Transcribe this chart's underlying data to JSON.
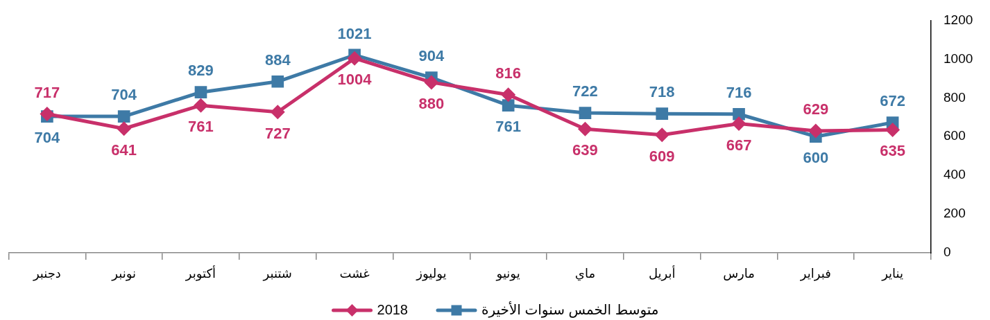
{
  "chart_data": {
    "type": "line",
    "categories": [
      "دجنبر",
      "نونبر",
      "أكتوبر",
      "شتنبر",
      "غشت",
      "يوليوز",
      "يونيو",
      "ماي",
      "أبريل",
      "مارس",
      "فبراير",
      "يناير"
    ],
    "series": [
      {
        "name": "2018",
        "color": "#c8306a",
        "marker": "diamond",
        "values": [
          717,
          641,
          761,
          727,
          1004,
          880,
          816,
          639,
          609,
          667,
          629,
          635
        ]
      },
      {
        "name": "متوسط الخمس سنوات الأخيرة",
        "color": "#3e7aa6",
        "marker": "square",
        "values": [
          704,
          704,
          829,
          884,
          1021,
          904,
          761,
          722,
          718,
          716,
          600,
          672
        ]
      }
    ],
    "ylim": [
      0,
      1200
    ],
    "yticks": [
      0,
      200,
      400,
      600,
      800,
      1000,
      1200
    ],
    "data_labels": true,
    "legend": "bottom"
  }
}
